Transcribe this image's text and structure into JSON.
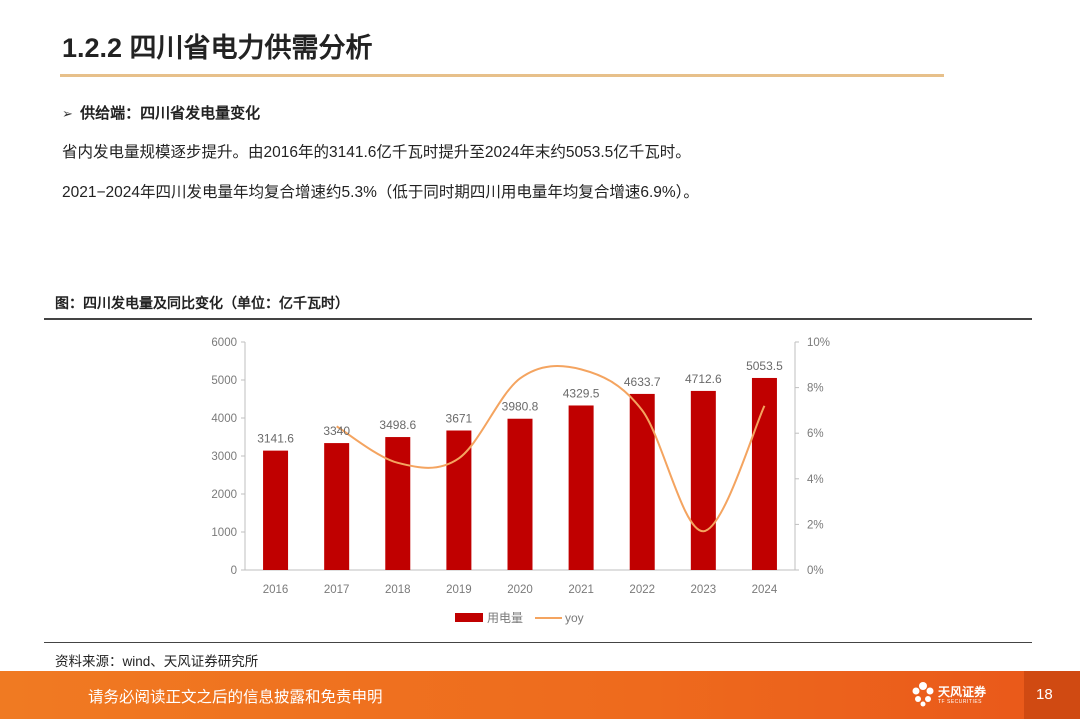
{
  "page": {
    "title": "1.2.2 四川省电力供需分析",
    "supply_heading": "供给端：四川省发电量变化",
    "arrow_glyph": "➢",
    "paragraph1": "省内发电量规模逐步提升。由2016年的3141.6亿千瓦时提升至2024年末约5053.5亿千瓦时。",
    "paragraph2": "2021−2024年四川发电量年均复合增速约5.3%（低于同时期四川用电量年均复合增速6.9%）。",
    "figure_caption": "图：四川发电量及同比变化（单位：亿千瓦时）",
    "source": "资料来源：wind、天风证券研究所"
  },
  "footer": {
    "disclaimer": "请务必阅读正文之后的信息披露和免责申明",
    "logo_text": "天风证券",
    "logo_sub": "TF SECURITIES",
    "page_number": "18"
  },
  "chart_data": {
    "type": "bar",
    "title": "",
    "categories": [
      "2016",
      "2017",
      "2018",
      "2019",
      "2020",
      "2021",
      "2022",
      "2023",
      "2024"
    ],
    "series": [
      {
        "name": "用电量",
        "type": "bar",
        "axis": "left",
        "color": "#c00000",
        "values": [
          3141.6,
          3340,
          3498.6,
          3671,
          3980.8,
          4329.5,
          4633.7,
          4712.6,
          5053.5
        ],
        "labels": [
          "3141.6",
          "3340",
          "3498.6",
          "3671",
          "3980.8",
          "4329.5",
          "4633.7",
          "4712.6",
          "5053.5"
        ]
      },
      {
        "name": "yoy",
        "type": "line",
        "axis": "right",
        "color": "#f4a460",
        "smooth": true,
        "values": [
          null,
          6.3,
          4.7,
          4.9,
          8.4,
          8.8,
          7.0,
          1.7,
          7.2
        ]
      }
    ],
    "yleft": {
      "min": 0,
      "max": 6000,
      "ticks": [
        "0",
        "1000",
        "2000",
        "3000",
        "4000",
        "5000",
        "6000"
      ]
    },
    "yright": {
      "min": 0,
      "max": 10,
      "ticks": [
        "0%",
        "2%",
        "4%",
        "6%",
        "8%",
        "10%"
      ]
    },
    "grid": false,
    "legend": "bottom-center",
    "legend_labels": [
      "用电量",
      "yoy"
    ]
  }
}
